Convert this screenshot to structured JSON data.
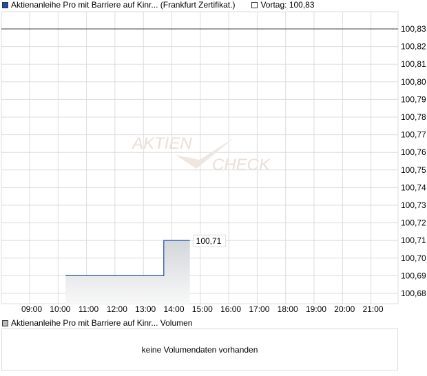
{
  "legend": {
    "series_label": "Aktienanleihe Pro mit Barriere auf Kinr... (Frankfurt Zertifikat.)",
    "series_color": "#1f4fa8",
    "prev_label": "Vortag: 100,83"
  },
  "watermark": {
    "line1": "AKTIEN",
    "line2": "CHECK"
  },
  "chart_data": {
    "type": "line",
    "step": true,
    "x_ticks": [
      "09:00",
      "10:00",
      "11:00",
      "12:00",
      "13:00",
      "14:00",
      "15:00",
      "16:00",
      "17:00",
      "18:00",
      "19:00",
      "20:00",
      "21:00"
    ],
    "y_ticks": [
      "100,83",
      "100,82",
      "100,81",
      "100,80",
      "100,79",
      "100,78",
      "100,77",
      "100,76",
      "100,75",
      "100,74",
      "100,73",
      "100,72",
      "100,71",
      "100,70",
      "100,69",
      "100,68"
    ],
    "ylim": [
      100.674,
      100.84
    ],
    "xlim": [
      "08:00",
      "22:00"
    ],
    "grid": true,
    "series": [
      {
        "x": [
          "10:16",
          "13:43",
          "14:38"
        ],
        "y": [
          100.69,
          100.71,
          100.71
        ]
      }
    ],
    "reference_line": {
      "value": 100.83,
      "color": "#666666"
    },
    "last_value_label": "100,71"
  },
  "volume": {
    "legend_label": "Aktienanleihe Pro mit Barriere auf Kinr... Volumen",
    "empty_text": "keine Volumendaten vorhanden"
  }
}
